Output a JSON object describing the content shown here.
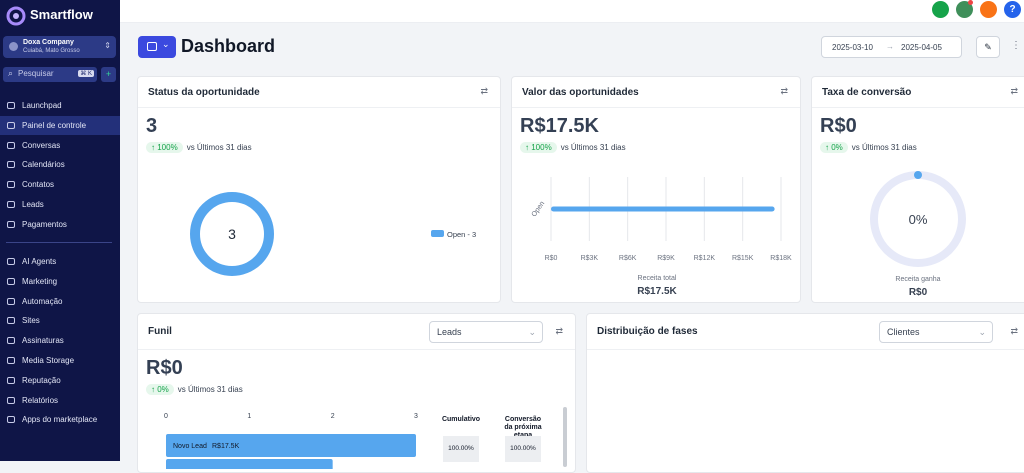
{
  "sidebar": {
    "brand": "Smartflow",
    "account": {
      "name": "Doxa Company",
      "location": "Cuiabá, Mato Grosso"
    },
    "search": "Pesquisar",
    "shortcut": "⌘ K",
    "nav_main": [
      {
        "label": "Launchpad"
      },
      {
        "label": "Painel de controle",
        "active": true
      },
      {
        "label": "Conversas"
      },
      {
        "label": "Calendários"
      },
      {
        "label": "Contatos"
      },
      {
        "label": "Leads"
      },
      {
        "label": "Pagamentos"
      }
    ],
    "nav_more": [
      {
        "label": "AI Agents"
      },
      {
        "label": "Marketing"
      },
      {
        "label": "Automação"
      },
      {
        "label": "Sites"
      },
      {
        "label": "Assinaturas"
      },
      {
        "label": "Media Storage"
      },
      {
        "label": "Reputação"
      },
      {
        "label": "Relatórios"
      },
      {
        "label": "Apps do marketplace"
      }
    ]
  },
  "topbar": {
    "help": "?"
  },
  "header": {
    "title": "Dashboard",
    "date_from": "2025-03-10",
    "date_to": "2025-04-05"
  },
  "cards": [
    {
      "title": "Status da oportunidade",
      "value": "3",
      "change": "100%",
      "compare": "vs Últimos 31 dias",
      "chart": {
        "type": "donut",
        "center": "3",
        "categories": [
          "Open - 3"
        ],
        "values": [
          3
        ],
        "color": "#56a6ee"
      }
    },
    {
      "title": "Valor das oportunidades",
      "value": "R$17.5K",
      "change": "100%",
      "compare": "vs Últimos 31 dias",
      "chart": {
        "type": "bar",
        "categories": [
          "Open"
        ],
        "values": [
          17500
        ],
        "color": "#56a6ee",
        "xlim": [
          0,
          18000
        ],
        "xticks": [
          {
            "value": 0,
            "label": "R$0"
          },
          {
            "value": 3000,
            "label": "R$3K"
          },
          {
            "value": 6000,
            "label": "R$6K"
          },
          {
            "value": 9000,
            "label": "R$9K"
          },
          {
            "value": 12000,
            "label": "R$12K"
          },
          {
            "value": 15000,
            "label": "R$15K"
          },
          {
            "value": 18000,
            "label": "R$18K"
          }
        ],
        "xlabel": "Receita total",
        "total": "R$17.5K"
      }
    },
    {
      "title": "Taxa de conversão",
      "value": "R$0",
      "change": "0%",
      "compare": "vs Últimos 31 dias",
      "chart": {
        "type": "gauge",
        "values": [
          0
        ],
        "value_labels": [
          "0%"
        ],
        "ylim": [
          0,
          100
        ],
        "color": "#56a6ee",
        "label": "Receita ganha",
        "total": "R$0"
      }
    },
    {
      "title": "Funil",
      "select": "Leads",
      "value": "R$0",
      "change": "0%",
      "compare": "vs Últimos 31 dias",
      "chart": {
        "type": "bar",
        "categories": [
          "Novo Lead",
          null
        ],
        "values": [
          3,
          2
        ],
        "amounts": [
          "R$17.5K",
          null
        ],
        "color": "#56a6ee",
        "xlim": [
          0,
          3
        ],
        "xticks": [
          0,
          1,
          2,
          3
        ]
      },
      "table": {
        "columns": [
          "Cumulativo",
          "Conversão da próxima etapa"
        ],
        "rows": [
          [
            "100.00%",
            "100.00%"
          ]
        ]
      }
    },
    {
      "title": "Distribuição de fases",
      "select": "Clientes"
    }
  ]
}
